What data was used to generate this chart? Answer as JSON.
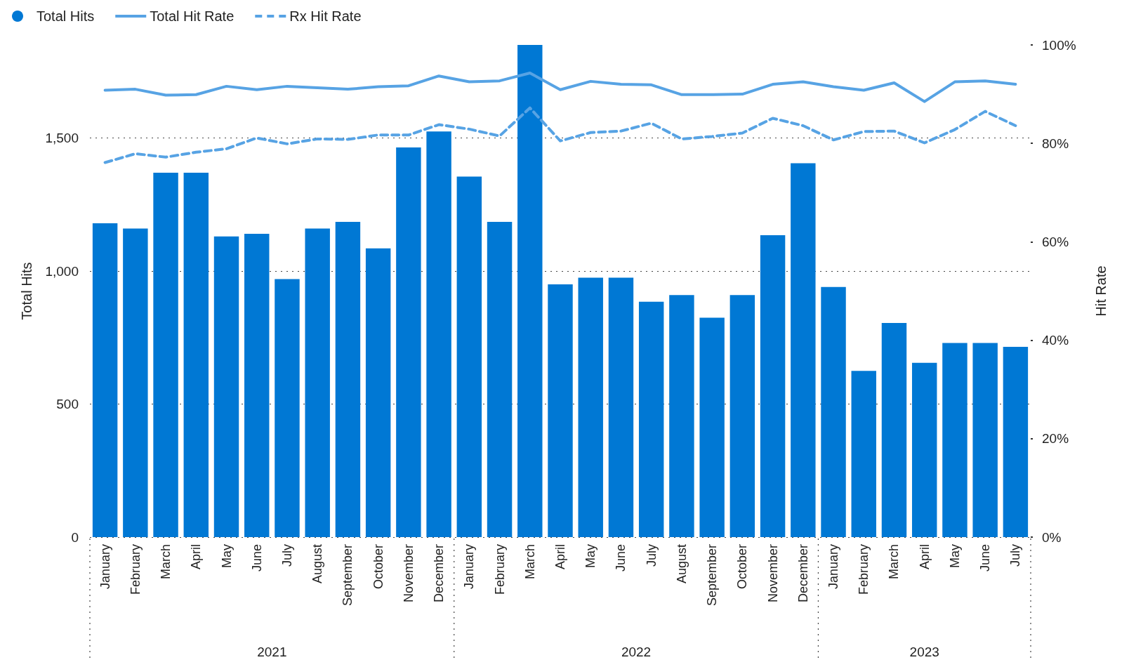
{
  "chart_data": {
    "type": "bar",
    "ylabel": "Total Hits",
    "y2label": "Hit Rate",
    "categories": [
      "January",
      "February",
      "March",
      "April",
      "May",
      "June",
      "July",
      "August",
      "September",
      "October",
      "November",
      "December",
      "January",
      "February",
      "March",
      "April",
      "May",
      "June",
      "July",
      "August",
      "September",
      "October",
      "November",
      "December",
      "January",
      "February",
      "March",
      "April",
      "May",
      "June",
      "July"
    ],
    "series": [
      {
        "name": "Total Hits",
        "color": "#0078d4",
        "values": [
          1180,
          1160,
          1370,
          1370,
          1130,
          1140,
          970,
          1160,
          1185,
          1085,
          1465,
          1525,
          1355,
          1185,
          1850,
          950,
          975,
          975,
          885,
          910,
          825,
          910,
          1135,
          1405,
          940,
          625,
          805,
          655,
          730,
          730,
          715
        ]
      },
      {
        "name": "Total Hit Rate",
        "type": "line",
        "axis": "y2",
        "color": "#57a3e4",
        "line_style": "solid",
        "values": [
          90.8,
          91.0,
          89.8,
          89.9,
          91.6,
          90.9,
          91.6,
          91.3,
          91.0,
          91.5,
          91.7,
          93.7,
          92.5,
          92.7,
          94.3,
          90.9,
          92.6,
          92.0,
          91.9,
          89.9,
          89.9,
          90.0,
          92.0,
          92.5,
          91.5,
          90.8,
          92.3,
          88.5,
          92.5,
          92.7,
          92.0
        ]
      },
      {
        "name": "Rx Hit Rate",
        "type": "line",
        "axis": "y2",
        "color": "#57a3e4",
        "line_style": "dashed",
        "values": [
          76.1,
          77.9,
          77.2,
          78.2,
          78.9,
          81.1,
          79.9,
          80.9,
          80.8,
          81.7,
          81.7,
          83.8,
          82.9,
          81.5,
          87.2,
          80.5,
          82.2,
          82.5,
          84.1,
          80.9,
          81.4,
          82.1,
          85.1,
          83.6,
          80.7,
          82.4,
          82.5,
          80.1,
          82.8,
          86.5,
          83.6
        ]
      }
    ],
    "ylim": [
      0,
      1850
    ],
    "yticks": [
      0,
      500,
      {
        "value": 1000,
        "label": "1,000"
      },
      {
        "value": 1500,
        "label": "1,500"
      }
    ],
    "y2lim": [
      0,
      100
    ],
    "y2ticks": [
      {
        "value": 0,
        "label": "0%"
      },
      {
        "value": 20,
        "label": "20%"
      },
      {
        "value": 40,
        "label": "40%"
      },
      {
        "value": 60,
        "label": "60%"
      },
      {
        "value": 80,
        "label": "80%"
      },
      {
        "value": 100,
        "label": "100%"
      }
    ],
    "annotations": [
      "2021",
      "2022",
      "2023"
    ],
    "grid": "y",
    "legend": "top left",
    "marker": "none"
  }
}
